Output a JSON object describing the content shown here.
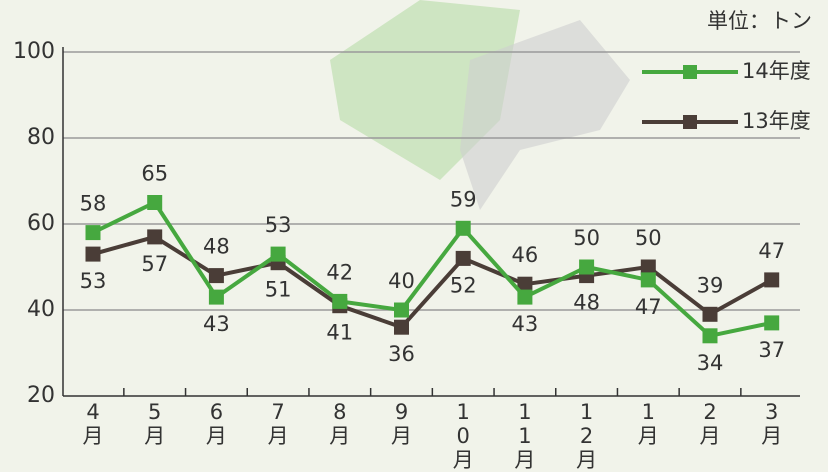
{
  "chart_data": {
    "type": "line",
    "unit_label": "単位：トン",
    "categories": [
      "4月",
      "5月",
      "6月",
      "7月",
      "8月",
      "9月",
      "10月",
      "11月",
      "12月",
      "1月",
      "2月",
      "3月"
    ],
    "series": [
      {
        "name": "14年度",
        "color": "#46a83f",
        "values": [
          58,
          65,
          43,
          53,
          42,
          40,
          59,
          43,
          50,
          47,
          34,
          37
        ]
      },
      {
        "name": "13年度",
        "color": "#4a3d37",
        "values": [
          53,
          57,
          48,
          51,
          41,
          36,
          52,
          46,
          48,
          50,
          39,
          47
        ]
      }
    ],
    "ylim": [
      20,
      100
    ],
    "yticks": [
      20,
      40,
      60,
      80,
      100
    ],
    "grid": true,
    "legend": "top-right"
  }
}
